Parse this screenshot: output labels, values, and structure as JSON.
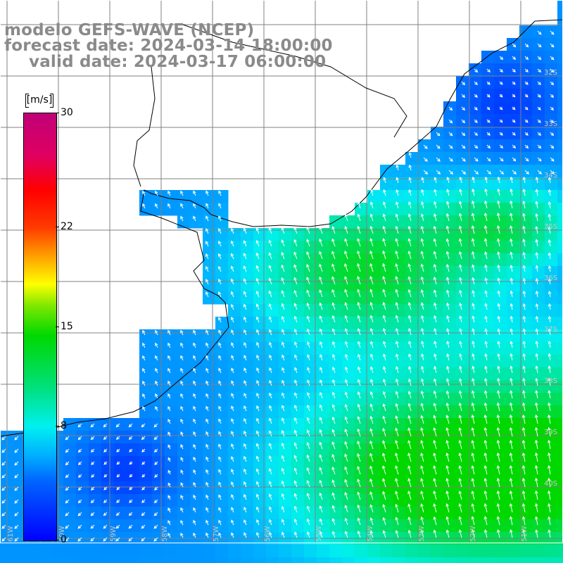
{
  "title": {
    "line1": "modelo GEFS-WAVE (NCEP)",
    "line2": "forecast date: 2024-03-14 18:00:00",
    "line3": "valid date: 2024-03-17 06:00:00"
  },
  "colorbar": {
    "unit": "[m/s]",
    "ticks": [
      {
        "value": 30,
        "label": "30"
      },
      {
        "value": 22,
        "label": "22"
      },
      {
        "value": 15,
        "label": "15"
      },
      {
        "value": 8,
        "label": "8"
      },
      {
        "value": 0,
        "label": "0"
      }
    ],
    "range": [
      0,
      30
    ],
    "colors": [
      "#0000ff",
      "#00b0ff",
      "#00f0f0",
      "#00d800",
      "#ffff00",
      "#ff9900",
      "#ff0000",
      "#c00078"
    ]
  },
  "map": {
    "variable": "wind speed and direction",
    "land_color": "#ffffff",
    "graticule_color": "#808080",
    "coastline_color": "#000000",
    "arrow_color": "#ffffff",
    "longitude_labels": [
      "61W",
      "60W",
      "59W",
      "58W",
      "57W",
      "56W",
      "55W",
      "54W",
      "53W",
      "52W",
      "51W"
    ],
    "latitude_labels": [
      "32S",
      "33S",
      "34S",
      "35S",
      "36S",
      "37S",
      "38S",
      "39S",
      "40S"
    ]
  }
}
